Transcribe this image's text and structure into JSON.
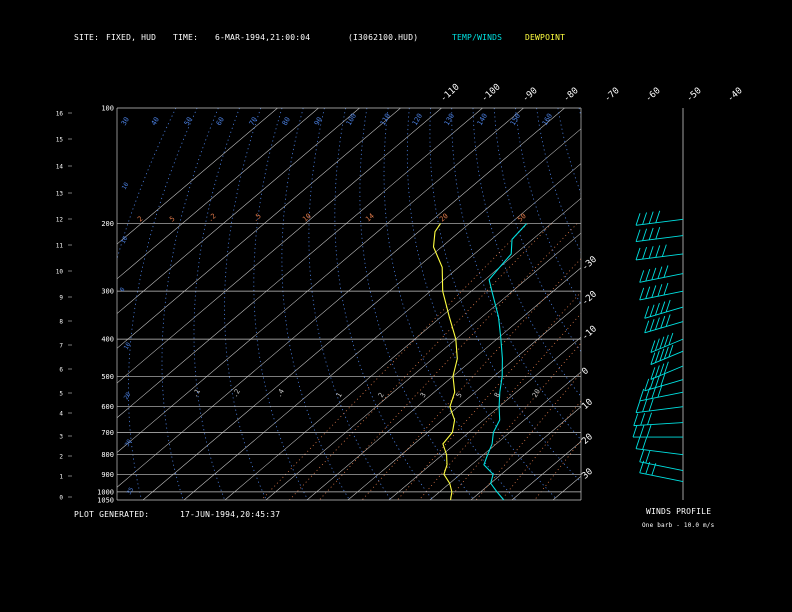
{
  "header": {
    "site_label": "SITE:",
    "site_value": "FIXED, HUD",
    "time_label": "TIME:",
    "time_value": "6-MAR-1994,21:00:04",
    "file_id": "(I3062100.HUD)",
    "temp_winds_label": "TEMP/WINDS",
    "dewpoint_label": "DEWPOINT"
  },
  "footer": {
    "plot_generated_label": "PLOT GENERATED:",
    "plot_generated_value": "17-JUN-1994,20:45:37",
    "winds_profile_label": "WINDS PROFILE",
    "barb_note": "One barb - 10.0 m/s"
  },
  "colors": {
    "background": "#000000",
    "frame": "#c8c8c8",
    "isotherm": "#cccccc",
    "dry_adiabat": "#4a7fe0",
    "mixing_ratio": "#e07a4a",
    "temperature": "#00e0e0",
    "dewpoint": "#ffff40",
    "wind": "#00e0e0"
  },
  "chart_data": {
    "type": "skew-t",
    "pressure_axis_label": "Pressure (hPa)",
    "pressure_levels": [
      100,
      200,
      300,
      400,
      500,
      600,
      700,
      800,
      900,
      1000,
      1050
    ],
    "height_ticks_km": [
      0,
      1,
      2,
      3,
      4,
      5,
      6,
      7,
      8,
      9,
      10,
      11,
      12,
      13,
      14,
      15,
      16
    ],
    "isotherm_labels_top": [
      -110,
      -100,
      -90,
      -80,
      -70,
      -60,
      -50,
      -40
    ],
    "isotherm_labels_right": [
      -30,
      -20,
      -10,
      0,
      10,
      20,
      30
    ],
    "dry_adiabat_labels": [
      30,
      40,
      50,
      60,
      70,
      80,
      90,
      100,
      110,
      120,
      130,
      140,
      150,
      160
    ],
    "mixing_ratio_labels_200": [
      "2",
      "5",
      ".2",
      ".5",
      "10",
      "14",
      "20",
      "50"
    ],
    "mixing_ratio_labels_550": [
      ".1",
      ".2",
      ".4",
      "1",
      "2",
      "3",
      "5",
      "8",
      "20"
    ],
    "temperature_profile": [
      {
        "p": 1050,
        "t": 18
      },
      {
        "p": 1000,
        "t": 14
      },
      {
        "p": 950,
        "t": 10
      },
      {
        "p": 900,
        "t": 8
      },
      {
        "p": 850,
        "t": 3
      },
      {
        "p": 800,
        "t": 1
      },
      {
        "p": 750,
        "t": -1
      },
      {
        "p": 700,
        "t": -4
      },
      {
        "p": 650,
        "t": -6
      },
      {
        "p": 600,
        "t": -10
      },
      {
        "p": 550,
        "t": -14
      },
      {
        "p": 500,
        "t": -18
      },
      {
        "p": 450,
        "t": -23
      },
      {
        "p": 400,
        "t": -29
      },
      {
        "p": 350,
        "t": -36
      },
      {
        "p": 300,
        "t": -45
      },
      {
        "p": 280,
        "t": -49
      },
      {
        "p": 260,
        "t": -50
      },
      {
        "p": 240,
        "t": -51
      },
      {
        "p": 220,
        "t": -55
      },
      {
        "p": 200,
        "t": -56
      }
    ],
    "dewpoint_profile": [
      {
        "p": 1050,
        "t": 5
      },
      {
        "p": 1000,
        "t": 3
      },
      {
        "p": 950,
        "t": 0
      },
      {
        "p": 900,
        "t": -4
      },
      {
        "p": 850,
        "t": -6
      },
      {
        "p": 800,
        "t": -9
      },
      {
        "p": 750,
        "t": -13
      },
      {
        "p": 700,
        "t": -14
      },
      {
        "p": 650,
        "t": -17
      },
      {
        "p": 600,
        "t": -22
      },
      {
        "p": 550,
        "t": -25
      },
      {
        "p": 500,
        "t": -30
      },
      {
        "p": 450,
        "t": -34
      },
      {
        "p": 400,
        "t": -40
      },
      {
        "p": 350,
        "t": -48
      },
      {
        "p": 300,
        "t": -57
      },
      {
        "p": 260,
        "t": -64
      },
      {
        "p": 230,
        "t": -72
      },
      {
        "p": 210,
        "t": -76
      },
      {
        "p": 200,
        "t": -77
      }
    ],
    "winds": [
      {
        "p": 940,
        "dir": 240,
        "spd": 25
      },
      {
        "p": 880,
        "dir": 240,
        "spd": 20
      },
      {
        "p": 800,
        "dir": 250,
        "spd": 22
      },
      {
        "p": 720,
        "dir": 270,
        "spd": 25
      },
      {
        "p": 660,
        "dir": 280,
        "spd": 30
      },
      {
        "p": 600,
        "dir": 290,
        "spd": 32
      },
      {
        "p": 550,
        "dir": 300,
        "spd": 35
      },
      {
        "p": 510,
        "dir": 310,
        "spd": 38
      },
      {
        "p": 470,
        "dir": 320,
        "spd": 42
      },
      {
        "p": 430,
        "dir": 320,
        "spd": 45
      },
      {
        "p": 400,
        "dir": 320,
        "spd": 45
      },
      {
        "p": 360,
        "dir": 310,
        "spd": 48
      },
      {
        "p": 330,
        "dir": 310,
        "spd": 50
      },
      {
        "p": 300,
        "dir": 300,
        "spd": 50
      },
      {
        "p": 270,
        "dir": 300,
        "spd": 48
      },
      {
        "p": 240,
        "dir": 290,
        "spd": 45
      },
      {
        "p": 215,
        "dir": 290,
        "spd": 40
      },
      {
        "p": 195,
        "dir": 290,
        "spd": 38
      }
    ]
  }
}
